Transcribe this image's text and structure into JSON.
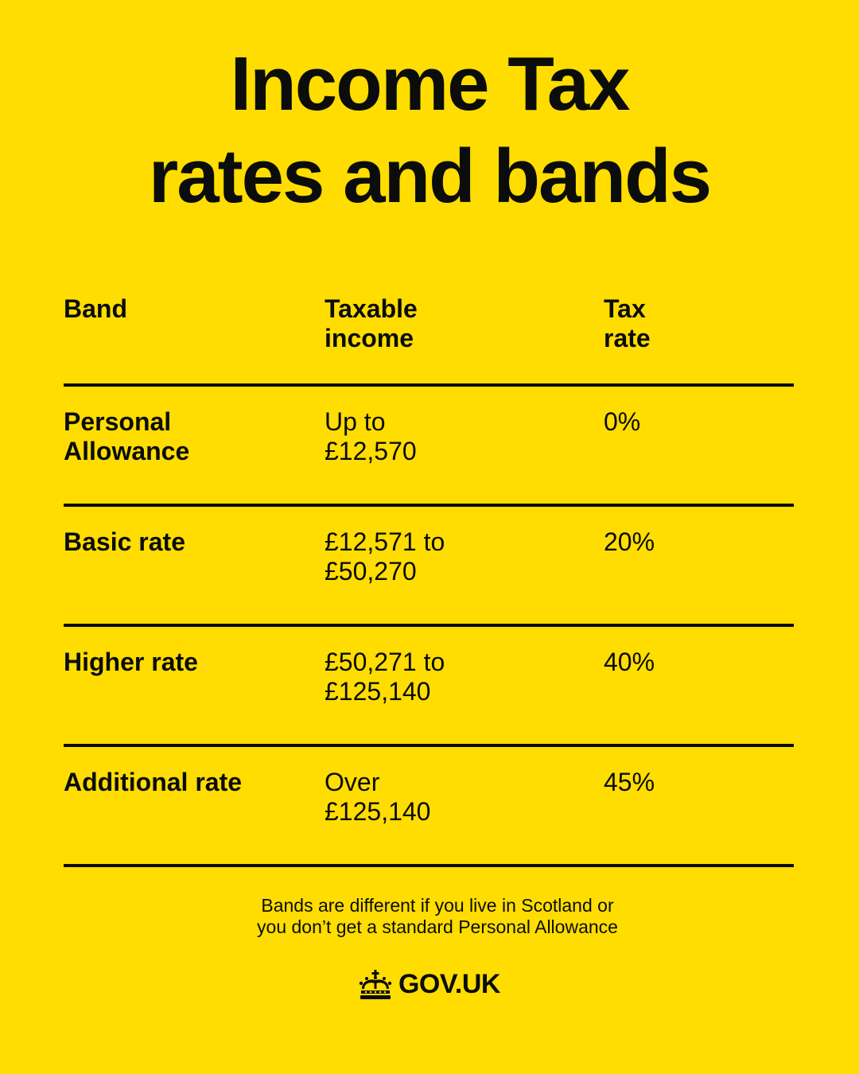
{
  "title": {
    "line1": "Income Tax",
    "line2": "rates and bands"
  },
  "table": {
    "headers": {
      "band": "Band",
      "income_line1": "Taxable",
      "income_line2": "income",
      "rate_line1": "Tax",
      "rate_line2": "rate"
    },
    "rows": [
      {
        "band_line1": "Personal",
        "band_line2": "Allowance",
        "income_line1": "Up to",
        "income_line2": "£12,570",
        "rate": "0%"
      },
      {
        "band_line1": "Basic rate",
        "band_line2": "",
        "income_line1": "£12,571 to",
        "income_line2": "£50,270",
        "rate": "20%"
      },
      {
        "band_line1": "Higher rate",
        "band_line2": "",
        "income_line1": "£50,271 to",
        "income_line2": "£125,140",
        "rate": "40%"
      },
      {
        "band_line1": "Additional rate",
        "band_line2": "",
        "income_line1": "Over",
        "income_line2": "£125,140",
        "rate": "45%"
      }
    ]
  },
  "note": {
    "line1": "Bands are different if you live in Scotland or",
    "line2": "you don’t get a standard Personal Allowance"
  },
  "logo": {
    "icon": "crown-icon",
    "text": "GOV.UK"
  },
  "colors": {
    "background": "#FFDD00",
    "text": "#0B0C0C"
  }
}
